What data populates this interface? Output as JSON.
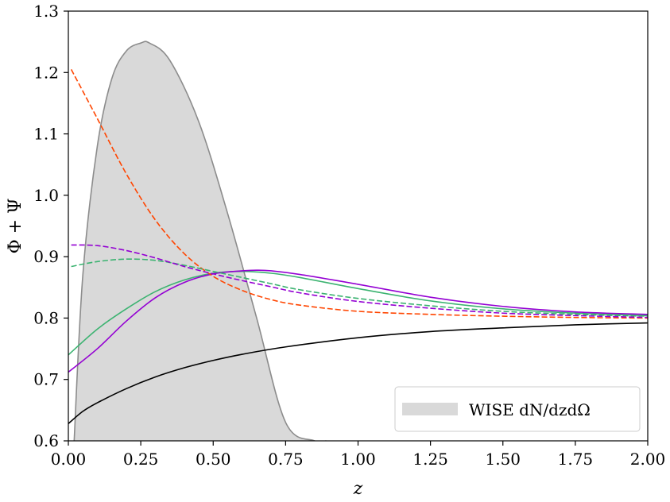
{
  "chart_data": {
    "type": "line",
    "title": "",
    "xlabel": "z",
    "ylabel": "Φ + Ψ",
    "xlim": [
      0.0,
      2.0
    ],
    "ylim": [
      0.6,
      1.3
    ],
    "xticks": [
      "0.00",
      "0.25",
      "0.50",
      "0.75",
      "1.00",
      "1.25",
      "1.50",
      "1.75",
      "2.00"
    ],
    "yticks": [
      "0.6",
      "0.7",
      "0.8",
      "0.9",
      "1.0",
      "1.1",
      "1.2",
      "1.3"
    ],
    "grid": false,
    "legend": {
      "placement": "bottom-right",
      "entries": [
        "WISE dN/dzdΩ"
      ]
    },
    "area": {
      "name": "WISE dN/dzdΩ",
      "color": "#d9d9d9",
      "edge_color": "#8c8c8c",
      "x": [
        0.02,
        0.05,
        0.1,
        0.15,
        0.2,
        0.25,
        0.28,
        0.35,
        0.45,
        0.55,
        0.65,
        0.75,
        0.85,
        0.89
      ],
      "y": [
        0.6,
        0.87,
        1.08,
        1.19,
        1.235,
        1.248,
        1.248,
        1.22,
        1.12,
        0.97,
        0.8,
        0.63,
        0.6,
        0.6
      ]
    },
    "series": [
      {
        "name": "black-solid",
        "color": "#000000",
        "dash": "solid",
        "x": [
          0.0,
          0.05,
          0.1,
          0.2,
          0.3,
          0.4,
          0.5,
          0.6,
          0.75,
          1.0,
          1.25,
          1.5,
          1.75,
          2.0
        ],
        "y": [
          0.628,
          0.648,
          0.662,
          0.685,
          0.704,
          0.719,
          0.731,
          0.741,
          0.753,
          0.768,
          0.778,
          0.784,
          0.789,
          0.792
        ]
      },
      {
        "name": "green-solid",
        "color": "#3cb371",
        "dash": "solid",
        "x": [
          0.0,
          0.1,
          0.2,
          0.3,
          0.4,
          0.5,
          0.6,
          0.7,
          0.8,
          1.0,
          1.25,
          1.5,
          1.75,
          2.0
        ],
        "y": [
          0.74,
          0.782,
          0.815,
          0.843,
          0.862,
          0.873,
          0.876,
          0.873,
          0.866,
          0.848,
          0.828,
          0.815,
          0.808,
          0.804
        ]
      },
      {
        "name": "purple-solid",
        "color": "#9400d3",
        "dash": "solid",
        "x": [
          0.0,
          0.1,
          0.2,
          0.3,
          0.4,
          0.5,
          0.6,
          0.65,
          0.7,
          0.8,
          1.0,
          1.25,
          1.5,
          1.75,
          2.0
        ],
        "y": [
          0.712,
          0.75,
          0.795,
          0.833,
          0.858,
          0.872,
          0.877,
          0.878,
          0.877,
          0.871,
          0.855,
          0.834,
          0.819,
          0.81,
          0.806
        ]
      },
      {
        "name": "orange-dashed",
        "color": "#ff4500",
        "dash": "dashed",
        "x": [
          0.01,
          0.1,
          0.2,
          0.3,
          0.4,
          0.5,
          0.6,
          0.7,
          0.8,
          1.0,
          1.25,
          1.5,
          1.75,
          2.0
        ],
        "y": [
          1.205,
          1.125,
          1.035,
          0.96,
          0.905,
          0.868,
          0.845,
          0.83,
          0.821,
          0.811,
          0.806,
          0.803,
          0.801,
          0.8
        ]
      },
      {
        "name": "green-dashed",
        "color": "#3cb371",
        "dash": "dashed",
        "x": [
          0.01,
          0.1,
          0.2,
          0.3,
          0.4,
          0.5,
          0.6,
          0.7,
          0.8,
          1.0,
          1.25,
          1.5,
          1.75,
          2.0
        ],
        "y": [
          0.884,
          0.892,
          0.896,
          0.894,
          0.886,
          0.876,
          0.866,
          0.856,
          0.846,
          0.832,
          0.82,
          0.811,
          0.806,
          0.803
        ]
      },
      {
        "name": "purple-dashed",
        "color": "#9400d3",
        "dash": "dashed",
        "x": [
          0.01,
          0.1,
          0.2,
          0.3,
          0.4,
          0.5,
          0.6,
          0.7,
          0.8,
          1.0,
          1.25,
          1.5,
          1.75,
          2.0
        ],
        "y": [
          0.919,
          0.918,
          0.91,
          0.898,
          0.884,
          0.872,
          0.861,
          0.851,
          0.841,
          0.827,
          0.816,
          0.808,
          0.804,
          0.801
        ]
      }
    ]
  }
}
